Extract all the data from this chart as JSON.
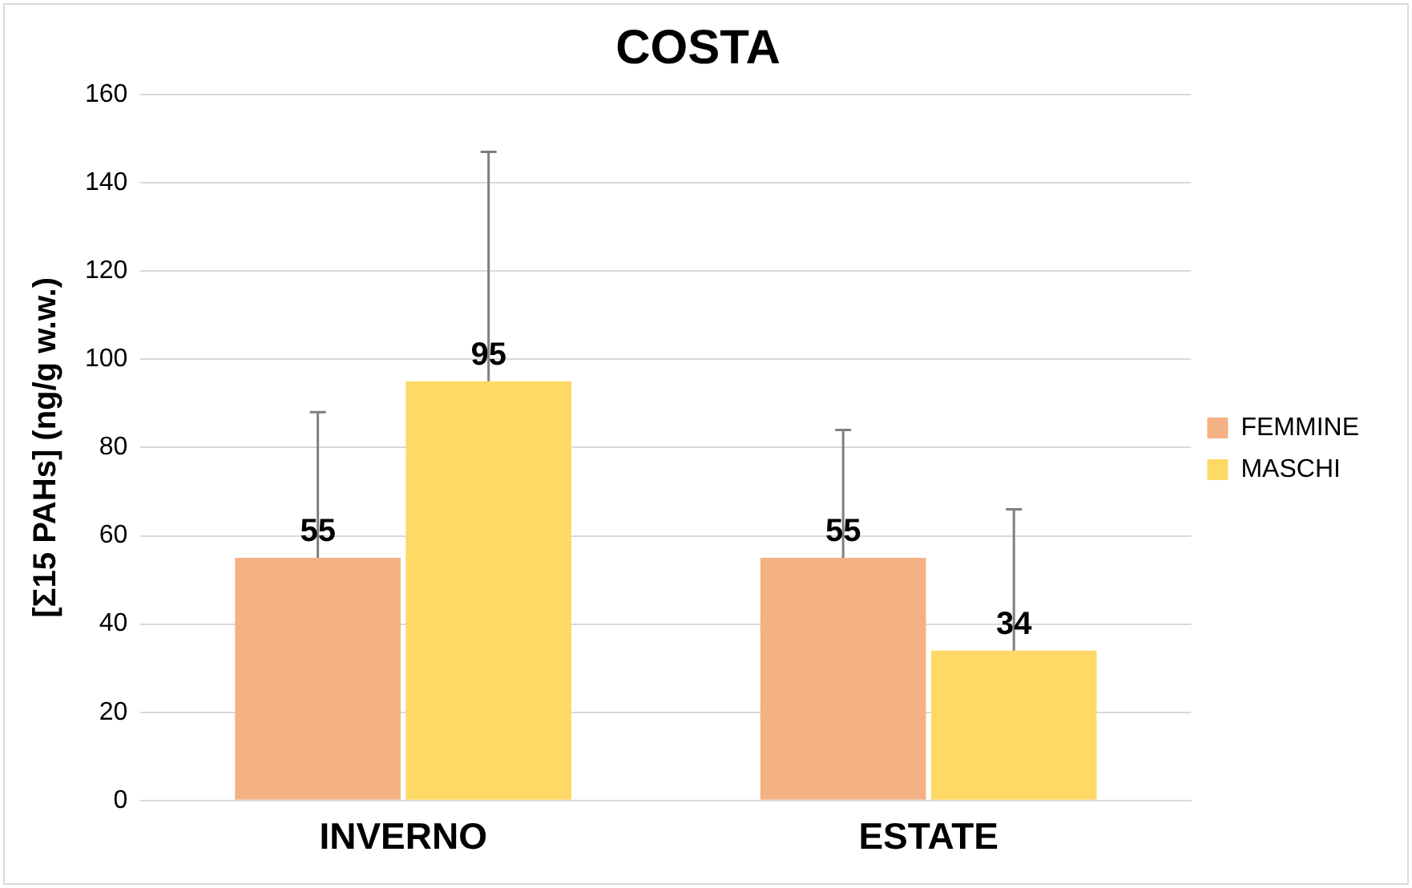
{
  "chart_data": {
    "type": "bar",
    "title": "COSTA",
    "ylabel": "[Σ15 PAHs] (ng/g w.w.)",
    "categories": [
      "INVERNO",
      "ESTATE"
    ],
    "series": [
      {
        "name": "FEMMINE",
        "color": "#f4b183",
        "values": [
          55,
          55
        ],
        "errors": [
          [
            55,
            88
          ],
          [
            55,
            84
          ]
        ]
      },
      {
        "name": "MASCHI",
        "color": "#ffd966",
        "values": [
          95,
          34
        ],
        "errors": [
          [
            95,
            147
          ],
          [
            34,
            66
          ]
        ]
      }
    ],
    "ylim": [
      0,
      160
    ],
    "yticks": [
      0,
      20,
      40,
      60,
      80,
      100,
      120,
      140,
      160
    ],
    "grid": "y",
    "legend": "right",
    "data_labels": true
  }
}
